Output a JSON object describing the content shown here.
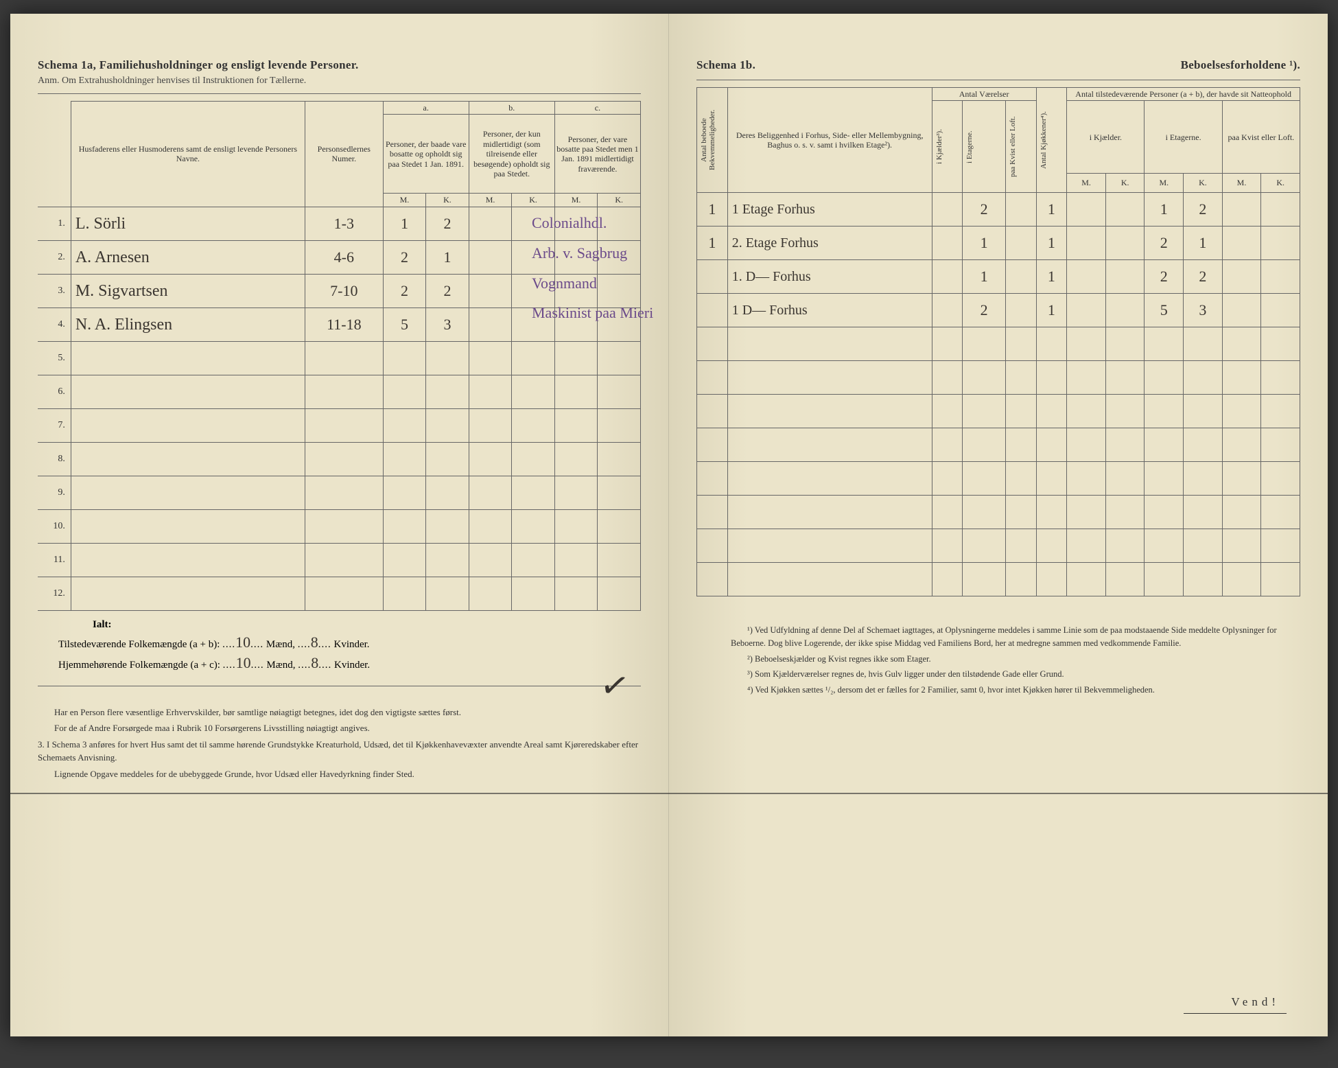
{
  "left": {
    "title": "Schema 1a,  Familiehusholdninger og ensligt levende Personer.",
    "subtitle": "Anm. Om Extrahusholdninger henvises til Instruktionen for Tællerne.",
    "col_name": "Husfaderens eller Husmoderens samt de ensligt levende Personers Navne.",
    "col_num": "Personsedlernes Numer.",
    "grp_a_label": "a.",
    "grp_a_desc": "Personer, der baade vare bosatte og opholdt sig paa Stedet 1 Jan. 1891.",
    "grp_b_label": "b.",
    "grp_b_desc": "Personer, der kun midlertidigt (som tilreisende eller besøgende) opholdt sig paa Stedet.",
    "grp_c_label": "c.",
    "grp_c_desc": "Personer, der vare bosatte paa Stedet men 1 Jan. 1891 midlertidigt fraværende.",
    "mk_m": "M.",
    "mk_k": "K.",
    "rows": [
      {
        "n": "1.",
        "name": "L. Sörli",
        "num": "1-3",
        "am": "1",
        "ak": "2",
        "bm": "",
        "bk": "",
        "cm": "",
        "ck": ""
      },
      {
        "n": "2.",
        "name": "A. Arnesen",
        "num": "4-6",
        "am": "2",
        "ak": "1",
        "bm": "",
        "bk": "",
        "cm": "",
        "ck": ""
      },
      {
        "n": "3.",
        "name": "M. Sigvartsen",
        "num": "7-10",
        "am": "2",
        "ak": "2",
        "bm": "",
        "bk": "",
        "cm": "",
        "ck": ""
      },
      {
        "n": "4.",
        "name": "N. A. Elingsen",
        "num": "11-18",
        "am": "5",
        "ak": "3",
        "bm": "",
        "bk": "",
        "cm": "",
        "ck": ""
      },
      {
        "n": "5.",
        "name": "",
        "num": "",
        "am": "",
        "ak": "",
        "bm": "",
        "bk": "",
        "cm": "",
        "ck": ""
      },
      {
        "n": "6.",
        "name": "",
        "num": "",
        "am": "",
        "ak": "",
        "bm": "",
        "bk": "",
        "cm": "",
        "ck": ""
      },
      {
        "n": "7.",
        "name": "",
        "num": "",
        "am": "",
        "ak": "",
        "bm": "",
        "bk": "",
        "cm": "",
        "ck": ""
      },
      {
        "n": "8.",
        "name": "",
        "num": "",
        "am": "",
        "ak": "",
        "bm": "",
        "bk": "",
        "cm": "",
        "ck": ""
      },
      {
        "n": "9.",
        "name": "",
        "num": "",
        "am": "",
        "ak": "",
        "bm": "",
        "bk": "",
        "cm": "",
        "ck": ""
      },
      {
        "n": "10.",
        "name": "",
        "num": "",
        "am": "",
        "ak": "",
        "bm": "",
        "bk": "",
        "cm": "",
        "ck": ""
      },
      {
        "n": "11.",
        "name": "",
        "num": "",
        "am": "",
        "ak": "",
        "bm": "",
        "bk": "",
        "cm": "",
        "ck": ""
      },
      {
        "n": "12.",
        "name": "",
        "num": "",
        "am": "",
        "ak": "",
        "bm": "",
        "bk": "",
        "cm": "",
        "ck": ""
      }
    ],
    "ialt_label": "Ialt:",
    "sum1_pre": "Tilstedeværende Folkemængde (a + b): ",
    "sum1_m": "10",
    "sum1_mid": " Mænd, ",
    "sum1_k": "8",
    "sum1_end": " Kvinder.",
    "sum2_pre": "Hjemmehørende Folkemængde (a + c): ",
    "sum2_m": "10",
    "sum2_mid": " Mænd, ",
    "sum2_k": "8",
    "sum2_end": " Kvinder.",
    "foot1": "Har en Person flere væsentlige Erhvervskilder, bør samtlige nøiagtigt betegnes, idet dog den vigtigste sættes først.",
    "foot2": "For de af Andre Forsørgede maa i Rubrik 10 Forsørgerens Livsstilling nøiagtigt angives.",
    "foot3_num": "3.",
    "foot3": "I Schema 3 anføres for hvert Hus samt det til samme hørende Grundstykke Kreaturhold, Udsæd, det til Kjøkkenhavevæxter anvendte Areal samt Kjøreredskaber efter Schemaets Anvisning.",
    "foot4": "Lignende Opgave meddeles for de ubebyggede Grunde, hvor Udsæd eller Havedyrkning finder Sted."
  },
  "right": {
    "title_l": "Schema 1b.",
    "title_r": "Beboelsesforholdene ¹).",
    "col_bekv": "Antal beboede Bekvemmeligheder.",
    "col_belig": "Deres Beliggenhed i Forhus, Side- eller Mellembygning, Baghus o. s. v. samt i hvilken Etage²).",
    "grp_vaer": "Antal Værelser",
    "col_kjaeld": "i Kjælder³).",
    "col_etage": "i Etagerne.",
    "col_kvist": "paa Kvist eller Loft.",
    "col_kjok": "Antal Kjøkkener⁴).",
    "grp_natte": "Antal tilstedeværende Personer (a + b), der havde sit Natteophold",
    "col_n_kjaeld": "i Kjælder.",
    "col_n_etage": "i Etagerne.",
    "col_n_kvist": "paa Kvist eller Loft.",
    "rows": [
      {
        "occ": "Colonialhdl.",
        "bekv": "1",
        "belig": "1 Etage Forhus",
        "kj": "",
        "et": "2",
        "kv": "",
        "kjok": "1",
        "nkjm": "",
        "nkjk": "",
        "netm": "1",
        "netk": "2",
        "nkvm": "",
        "nkvk": ""
      },
      {
        "occ": "Arb. v. Sagbrug",
        "bekv": "1",
        "belig": "2. Etage Forhus",
        "kj": "",
        "et": "1",
        "kv": "",
        "kjok": "1",
        "nkjm": "",
        "nkjk": "",
        "netm": "2",
        "netk": "1",
        "nkvm": "",
        "nkvk": ""
      },
      {
        "occ": "Vognmand",
        "bekv": "",
        "belig": "1. D— Forhus",
        "kj": "",
        "et": "1",
        "kv": "",
        "kjok": "1",
        "nkjm": "",
        "nkjk": "",
        "netm": "2",
        "netk": "2",
        "nkvm": "",
        "nkvk": ""
      },
      {
        "occ": "Maskinist paa Mieri",
        "bekv": "",
        "belig": "1 D— Forhus",
        "kj": "",
        "et": "2",
        "kv": "",
        "kjok": "1",
        "nkjm": "",
        "nkjk": "",
        "netm": "5",
        "netk": "3",
        "nkvm": "",
        "nkvk": ""
      },
      {
        "occ": "",
        "bekv": "",
        "belig": "",
        "kj": "",
        "et": "",
        "kv": "",
        "kjok": "",
        "nkjm": "",
        "nkjk": "",
        "netm": "",
        "netk": "",
        "nkvm": "",
        "nkvk": ""
      },
      {
        "occ": "",
        "bekv": "",
        "belig": "",
        "kj": "",
        "et": "",
        "kv": "",
        "kjok": "",
        "nkjm": "",
        "nkjk": "",
        "netm": "",
        "netk": "",
        "nkvm": "",
        "nkvk": ""
      },
      {
        "occ": "",
        "bekv": "",
        "belig": "",
        "kj": "",
        "et": "",
        "kv": "",
        "kjok": "",
        "nkjm": "",
        "nkjk": "",
        "netm": "",
        "netk": "",
        "nkvm": "",
        "nkvk": ""
      },
      {
        "occ": "",
        "bekv": "",
        "belig": "",
        "kj": "",
        "et": "",
        "kv": "",
        "kjok": "",
        "nkjm": "",
        "nkjk": "",
        "netm": "",
        "netk": "",
        "nkvm": "",
        "nkvk": ""
      },
      {
        "occ": "",
        "bekv": "",
        "belig": "",
        "kj": "",
        "et": "",
        "kv": "",
        "kjok": "",
        "nkjm": "",
        "nkjk": "",
        "netm": "",
        "netk": "",
        "nkvm": "",
        "nkvk": ""
      },
      {
        "occ": "",
        "bekv": "",
        "belig": "",
        "kj": "",
        "et": "",
        "kv": "",
        "kjok": "",
        "nkjm": "",
        "nkjk": "",
        "netm": "",
        "netk": "",
        "nkvm": "",
        "nkvk": ""
      },
      {
        "occ": "",
        "bekv": "",
        "belig": "",
        "kj": "",
        "et": "",
        "kv": "",
        "kjok": "",
        "nkjm": "",
        "nkjk": "",
        "netm": "",
        "netk": "",
        "nkvm": "",
        "nkvk": ""
      },
      {
        "occ": "",
        "bekv": "",
        "belig": "",
        "kj": "",
        "et": "",
        "kv": "",
        "kjok": "",
        "nkjm": "",
        "nkjk": "",
        "netm": "",
        "netk": "",
        "nkvm": "",
        "nkvk": ""
      }
    ],
    "fn1": "¹) Ved Udfyldning af denne Del af Schemaet iagttages, at Oplysningerne meddeles i samme Linie som de paa modstaaende Side meddelte Oplysninger for Beboerne. Dog blive Logerende, der ikke spise Middag ved Familiens Bord, her at medregne sammen med vedkommende Familie.",
    "fn2": "²) Beboelseskjælder og Kvist regnes ikke som Etager.",
    "fn3": "³) Som Kjælderværelser regnes de, hvis Gulv ligger under den tilstødende Gade eller Grund.",
    "fn4": "⁴) Ved Kjøkken sættes ¹/₂, dersom det er fælles for 2 Familier, samt 0, hvor intet Kjøkken hører til Bekvemmeligheden.",
    "vend": "Vend!"
  },
  "style": {
    "paper_bg": "#ebe4ca",
    "ink": "#333333",
    "hand_ink": "#3a3530",
    "purple_ink": "#6b4a8a",
    "border": "#666666",
    "font_header_pt": 17,
    "font_body_pt": 13,
    "font_hand_pt": 24
  }
}
